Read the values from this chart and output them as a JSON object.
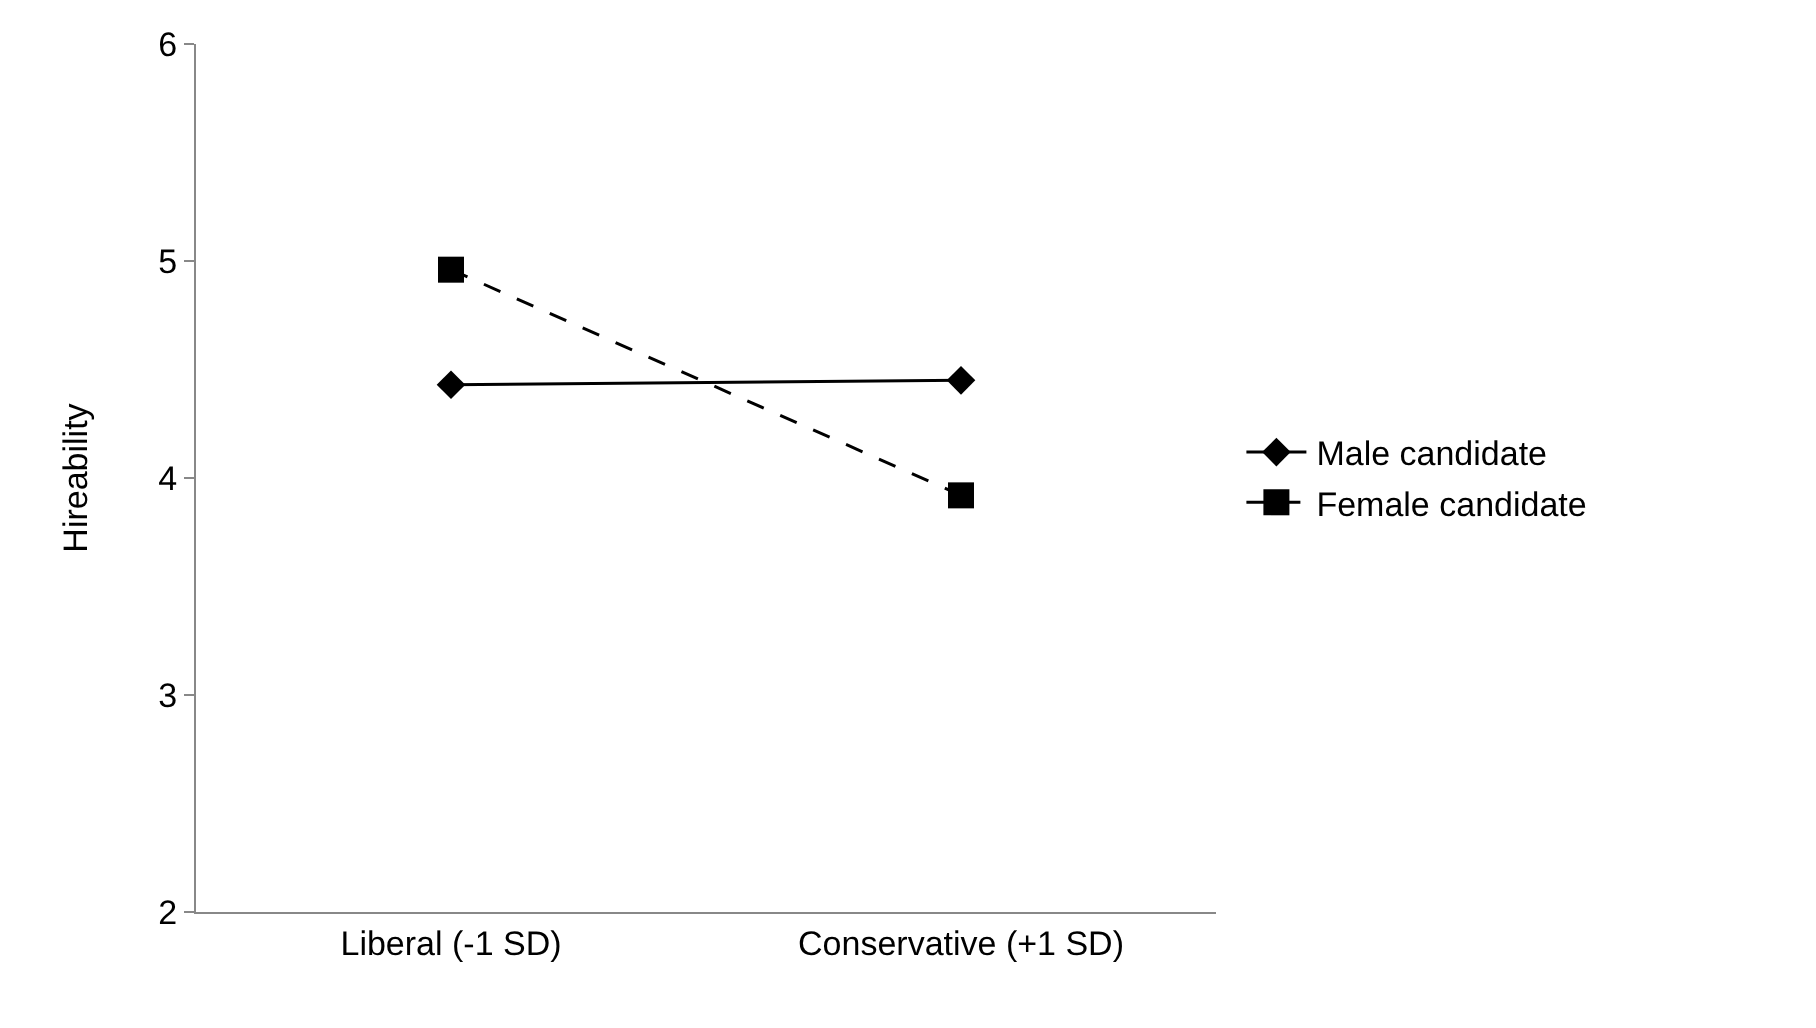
{
  "chart_data": {
    "type": "line",
    "ylabel": "Hireability",
    "categories": [
      "Liberal (-1 SD)",
      "Conservative (+1 SD)"
    ],
    "series": [
      {
        "name": "Male candidate",
        "color": "#000000",
        "values": [
          4.43,
          4.45
        ],
        "marker": "diamond",
        "line_style": "solid"
      },
      {
        "name": "Female candidate",
        "color": "#000000",
        "values": [
          4.96,
          3.92
        ],
        "marker": "square",
        "line_style": "dashed"
      }
    ],
    "ylim": [
      2,
      6
    ],
    "yticks": [
      2,
      3,
      4,
      5,
      6
    ],
    "grid": false,
    "legend": "right"
  }
}
